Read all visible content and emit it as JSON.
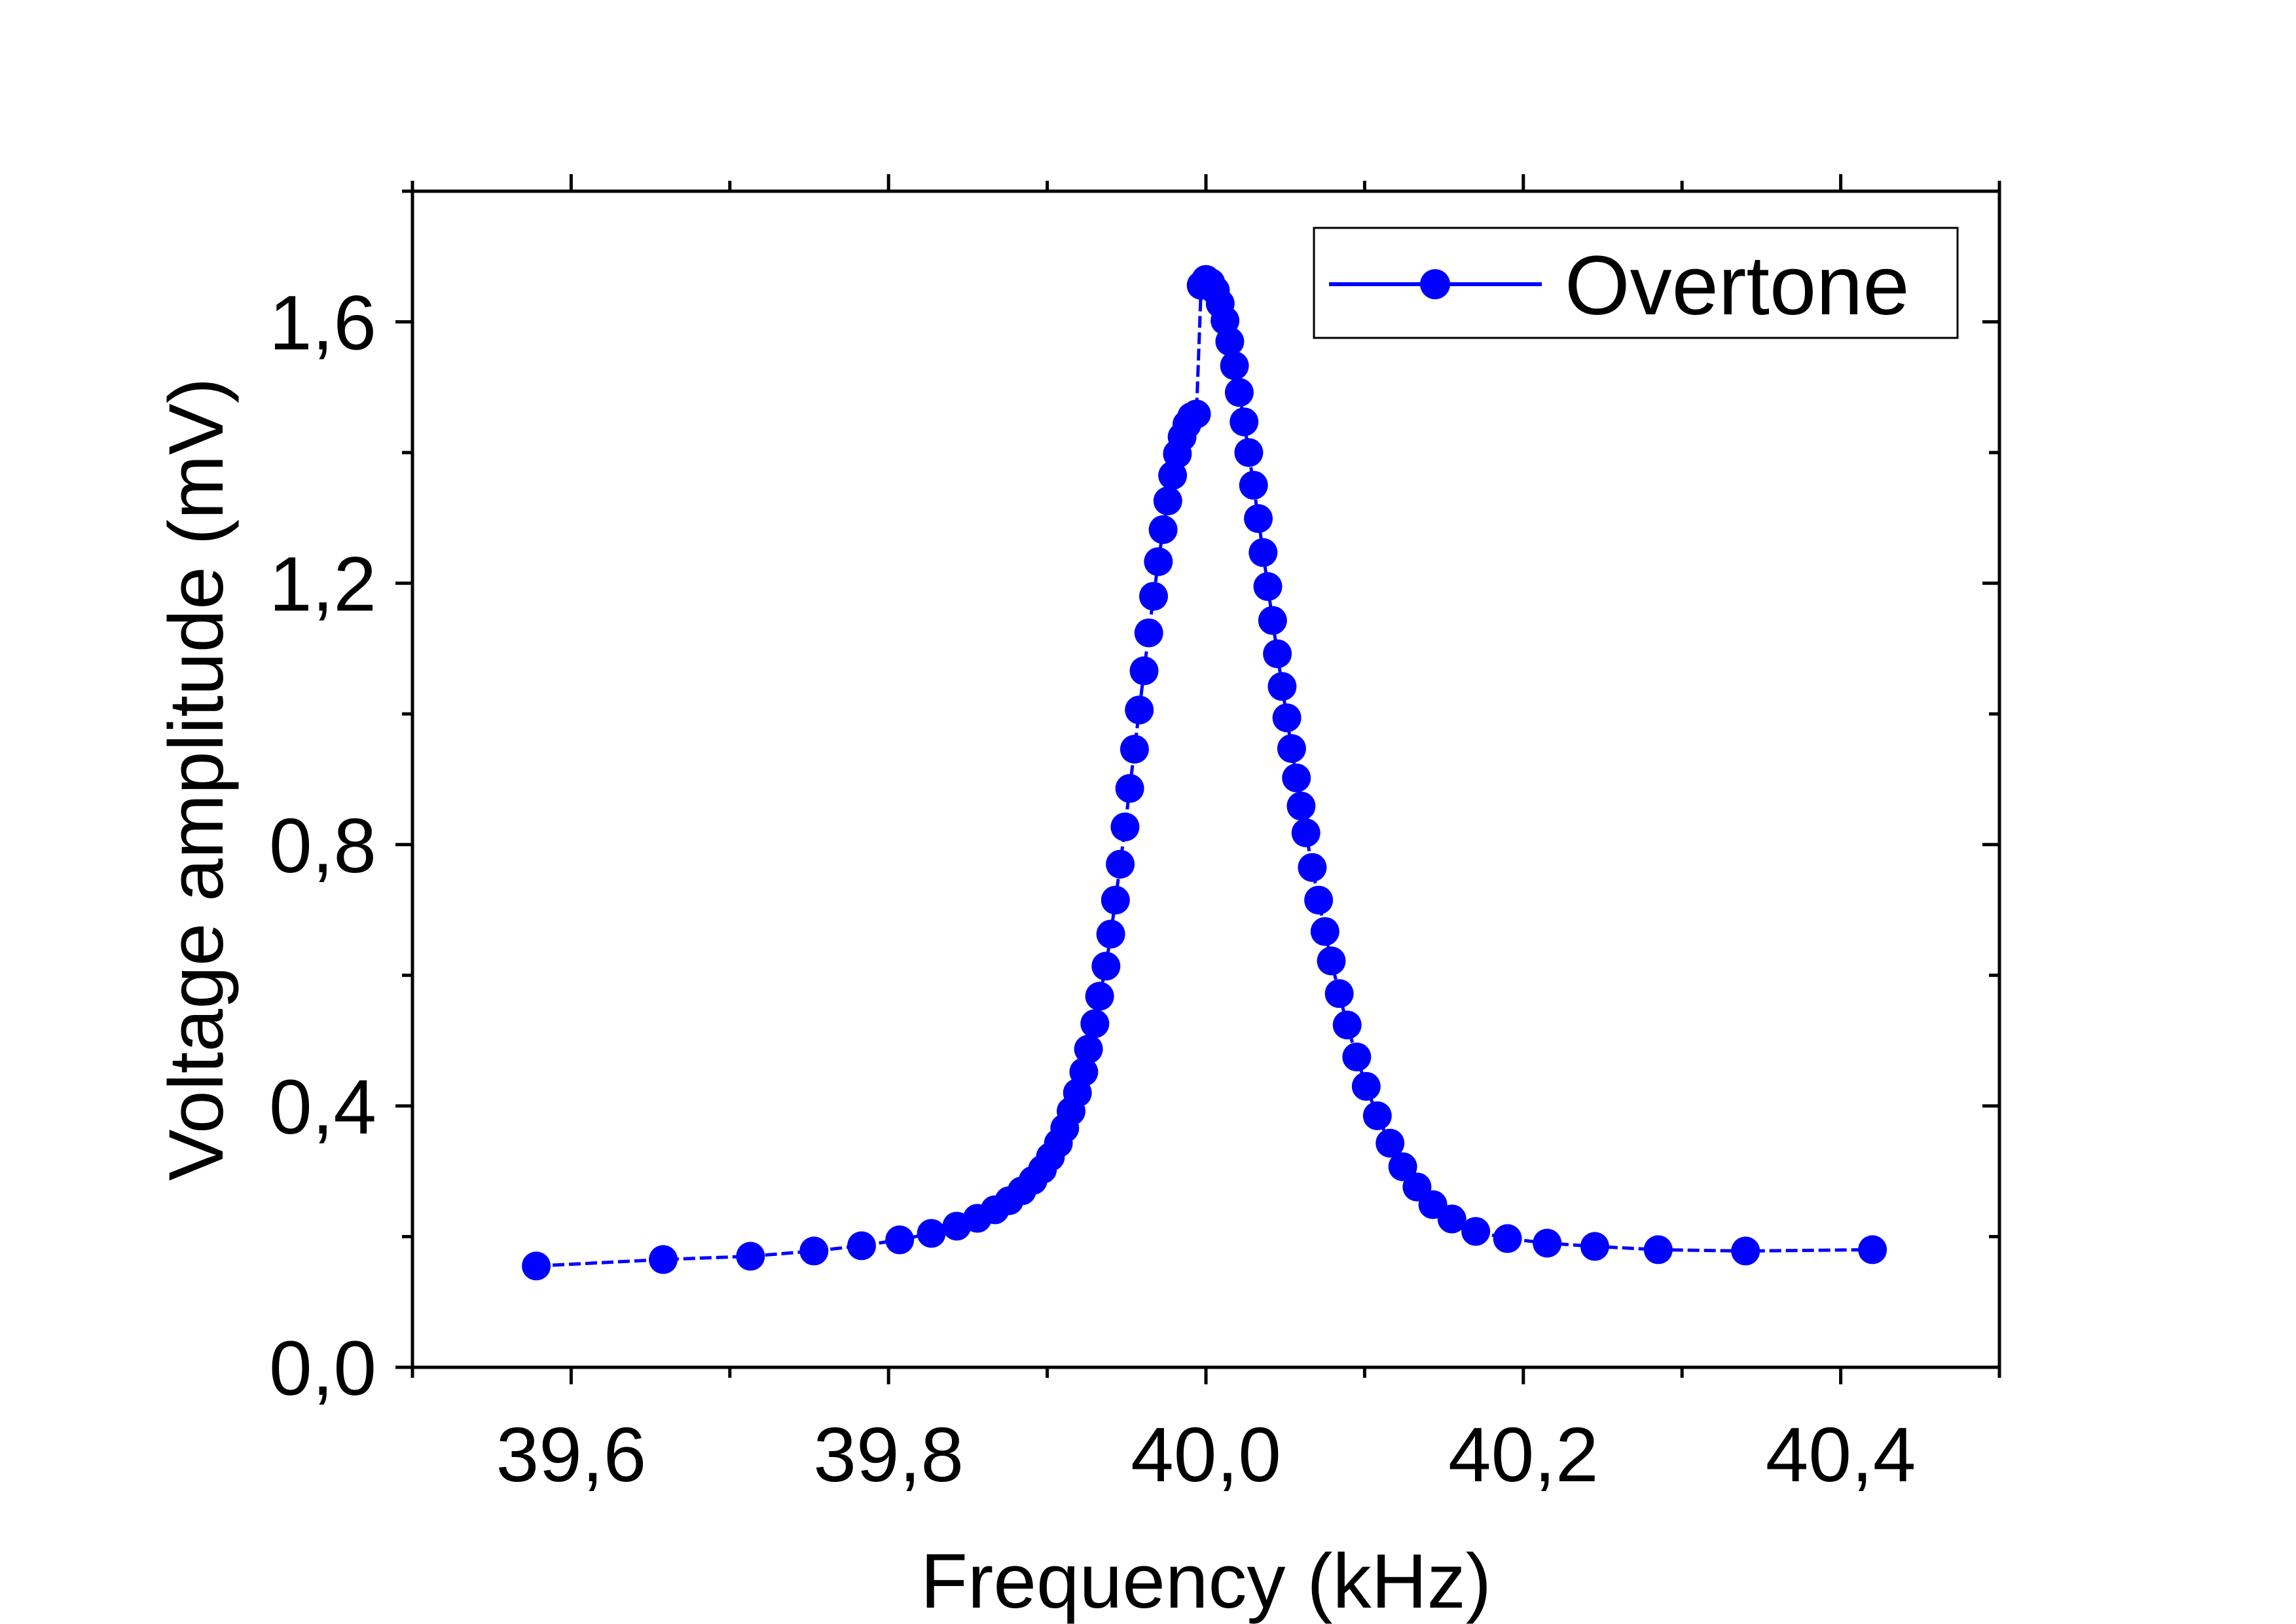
{
  "chart_data": {
    "type": "scatter",
    "title": "",
    "xlabel": "Frequency (kHz)",
    "ylabel": "Voltage amplitude (mV)",
    "xlim": [
      39.5,
      40.5
    ],
    "ylim": [
      0.0,
      1.8
    ],
    "x_ticks": [
      39.6,
      39.8,
      40.0,
      40.2,
      40.4
    ],
    "x_tick_labels": [
      "39,6",
      "39,8",
      "40,0",
      "40,2",
      "40,4"
    ],
    "y_ticks": [
      0.0,
      0.4,
      0.8,
      1.2,
      1.6
    ],
    "y_tick_labels": [
      "0,0",
      "0,4",
      "0,8",
      "1,2",
      "1,6"
    ],
    "grid": false,
    "legend_position": "top-right",
    "series": [
      {
        "name": "Overtone",
        "color": "#0000ff",
        "marker": "circle",
        "line": true,
        "x": [
          39.578,
          39.658,
          39.713,
          39.753,
          39.783,
          39.807,
          39.827,
          39.843,
          39.856,
          39.867,
          39.876,
          39.884,
          39.891,
          39.897,
          39.902,
          39.907,
          39.911,
          39.915,
          39.919,
          39.923,
          39.926,
          39.93,
          39.933,
          39.937,
          39.94,
          39.943,
          39.946,
          39.949,
          39.952,
          39.955,
          39.958,
          39.961,
          39.964,
          39.967,
          39.97,
          39.973,
          39.976,
          39.979,
          39.982,
          39.985,
          39.988,
          39.991,
          39.994,
          39.997,
          40.0,
          40.003,
          40.006,
          40.009,
          40.012,
          40.015,
          40.018,
          40.021,
          40.024,
          40.027,
          40.03,
          40.033,
          40.036,
          40.039,
          40.042,
          40.045,
          40.048,
          40.051,
          40.054,
          40.057,
          40.06,
          40.063,
          40.067,
          40.071,
          40.075,
          40.079,
          40.084,
          40.089,
          40.095,
          40.101,
          40.108,
          40.116,
          40.124,
          40.133,
          40.143,
          40.155,
          40.17,
          40.19,
          40.215,
          40.245,
          40.285,
          40.34,
          40.42
        ],
        "y": [
          0.155,
          0.165,
          0.17,
          0.178,
          0.186,
          0.195,
          0.205,
          0.216,
          0.228,
          0.241,
          0.255,
          0.27,
          0.286,
          0.303,
          0.322,
          0.343,
          0.366,
          0.392,
          0.42,
          0.452,
          0.487,
          0.526,
          0.568,
          0.614,
          0.663,
          0.715,
          0.77,
          0.827,
          0.886,
          0.946,
          1.006,
          1.066,
          1.124,
          1.18,
          1.233,
          1.282,
          1.326,
          1.365,
          1.398,
          1.424,
          1.443,
          1.455,
          1.459,
          1.656,
          1.665,
          1.66,
          1.648,
          1.628,
          1.602,
          1.57,
          1.533,
          1.492,
          1.447,
          1.4,
          1.35,
          1.299,
          1.247,
          1.195,
          1.143,
          1.092,
          1.042,
          0.994,
          0.947,
          0.902,
          0.859,
          0.818,
          0.765,
          0.715,
          0.667,
          0.622,
          0.572,
          0.524,
          0.475,
          0.43,
          0.385,
          0.343,
          0.307,
          0.276,
          0.249,
          0.227,
          0.208,
          0.197,
          0.19,
          0.185,
          0.18,
          0.178,
          0.18
        ]
      }
    ]
  }
}
